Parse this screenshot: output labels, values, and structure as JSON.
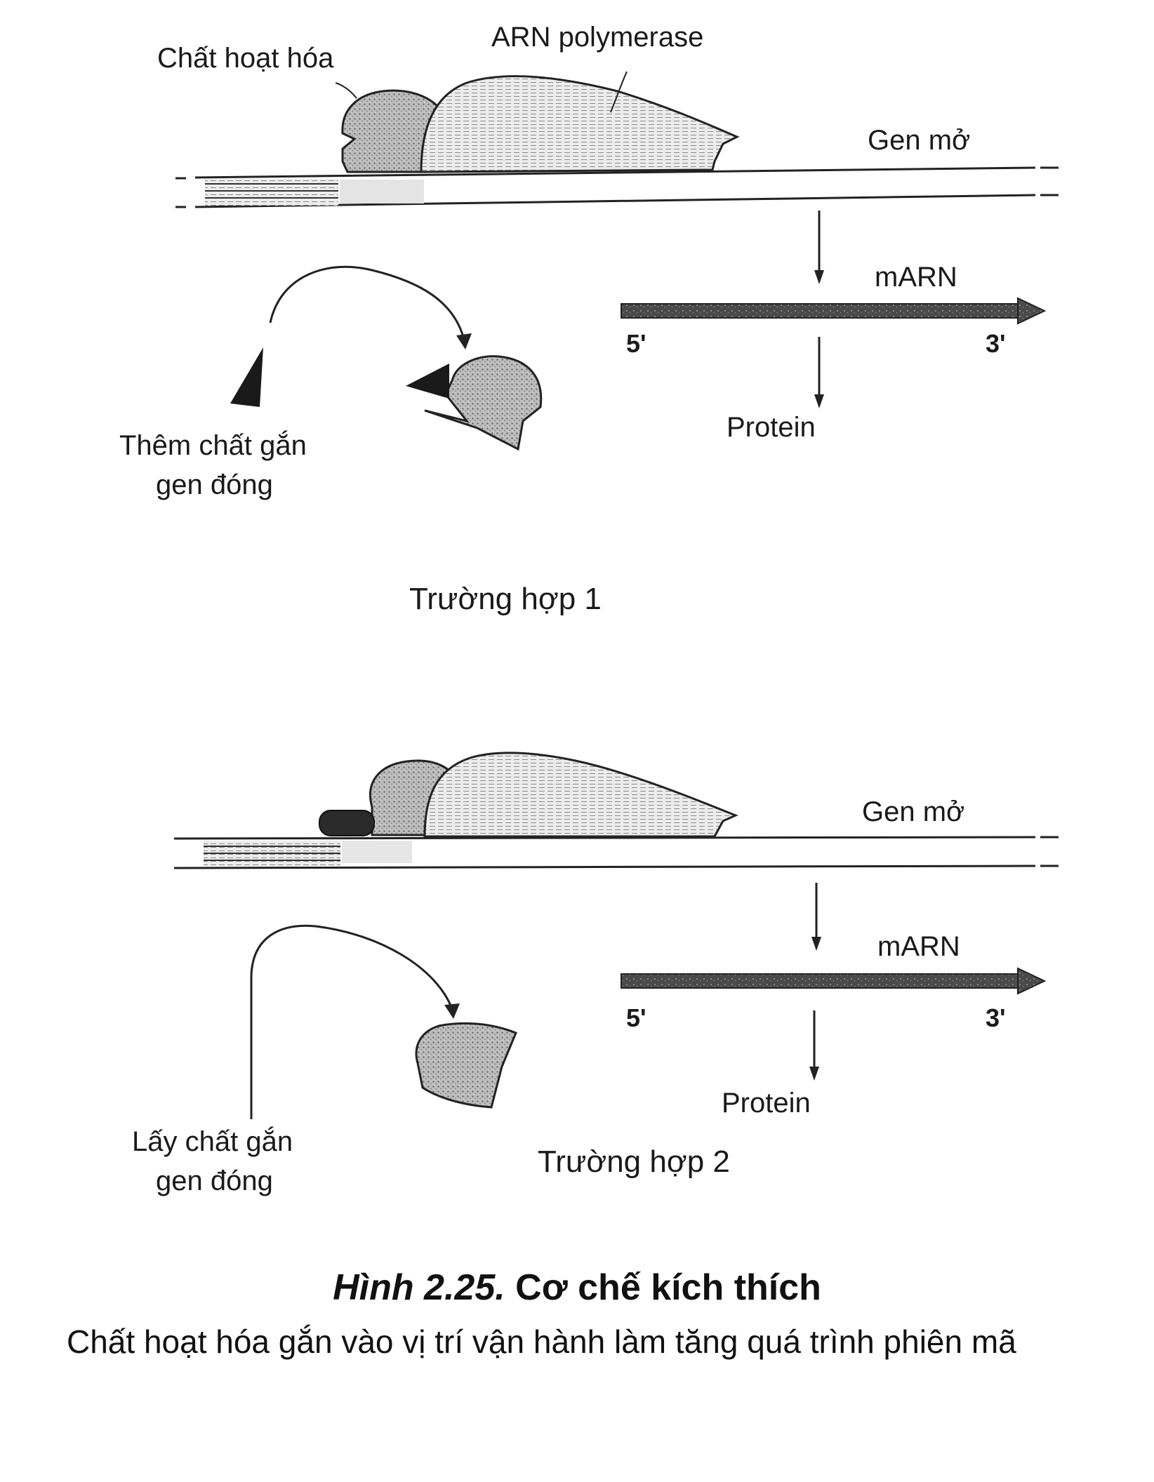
{
  "panel1": {
    "activator_label": "Chất hoạt hóa",
    "polymerase_label": "ARN polymerase",
    "open_gene_label": "Gen mở",
    "mrna_label": "mARN",
    "five_prime": "5'",
    "three_prime": "3'",
    "protein_label": "Protein",
    "inducer_line1": "Thêm chất gắn",
    "inducer_line2": "gen đóng",
    "case_label": "Trường hợp 1"
  },
  "panel2": {
    "open_gene_label": "Gen mở",
    "mrna_label": "mARN",
    "five_prime": "5'",
    "three_prime": "3'",
    "protein_label": "Protein",
    "inducer_line1": "Lấy chất gắn",
    "inducer_line2": "gen đóng",
    "case_label": "Trường hợp 2"
  },
  "caption": {
    "number": "Hình 2.25.",
    "title": "Cơ chế kích thích",
    "subtitle": "Chất hoạt hóa gắn vào vị trí vận hành làm tăng quá trình phiên mã"
  }
}
